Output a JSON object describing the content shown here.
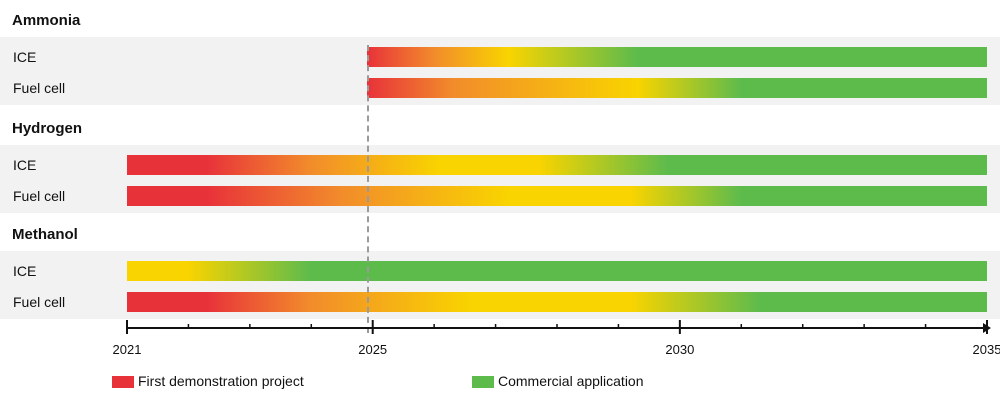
{
  "colors": {
    "red": "#e8323a",
    "orange": "#f28c2b",
    "yellow": "#f9d400",
    "green": "#5dbb4c",
    "axis": "#111111",
    "band": "#f2f2f2"
  },
  "chart_data": {
    "type": "timeline",
    "x_ticks": [
      "2021",
      "2025",
      "2030",
      "2035"
    ],
    "xlim": [
      2021,
      2035
    ],
    "dashed_line_year": 2024.9,
    "groups": [
      {
        "name": "Ammonia",
        "rows": [
          {
            "label": "ICE",
            "start": 2024.9,
            "end": 2035,
            "stops": [
              [
                2024.9,
                "red"
              ],
              [
                2026.0,
                "orange"
              ],
              [
                2027.2,
                "yellow"
              ],
              [
                2029.3,
                "green"
              ]
            ]
          },
          {
            "label": "Fuel cell",
            "start": 2024.9,
            "end": 2035,
            "stops": [
              [
                2024.9,
                "red"
              ],
              [
                2026.3,
                "orange"
              ],
              [
                2029.3,
                "yellow"
              ],
              [
                2031.0,
                "green"
              ]
            ]
          }
        ]
      },
      {
        "name": "Hydrogen",
        "rows": [
          {
            "label": "ICE",
            "start": 2021,
            "end": 2035,
            "stops": [
              [
                2021,
                "red"
              ],
              [
                2022.3,
                "red"
              ],
              [
                2024.0,
                "orange"
              ],
              [
                2026.1,
                "yellow"
              ],
              [
                2027.7,
                "yellow"
              ],
              [
                2029.8,
                "green"
              ]
            ]
          },
          {
            "label": "Fuel cell",
            "start": 2021,
            "end": 2035,
            "stops": [
              [
                2021,
                "red"
              ],
              [
                2022.3,
                "red"
              ],
              [
                2024.5,
                "orange"
              ],
              [
                2027.2,
                "yellow"
              ],
              [
                2029.2,
                "yellow"
              ],
              [
                2031.0,
                "green"
              ]
            ]
          }
        ]
      },
      {
        "name": "Methanol",
        "rows": [
          {
            "label": "ICE",
            "start": 2021,
            "end": 2035,
            "stops": [
              [
                2021,
                "yellow"
              ],
              [
                2022.0,
                "yellow"
              ],
              [
                2024.0,
                "green"
              ]
            ]
          },
          {
            "label": "Fuel cell",
            "start": 2021,
            "end": 2035,
            "stops": [
              [
                2021,
                "red"
              ],
              [
                2022.3,
                "red"
              ],
              [
                2024.0,
                "orange"
              ],
              [
                2026.6,
                "yellow"
              ],
              [
                2029.2,
                "yellow"
              ],
              [
                2031.3,
                "green"
              ]
            ]
          }
        ]
      }
    ],
    "legend": [
      {
        "label": "First demonstration project",
        "color": "red"
      },
      {
        "label": "Commercial application",
        "color": "green"
      }
    ]
  }
}
